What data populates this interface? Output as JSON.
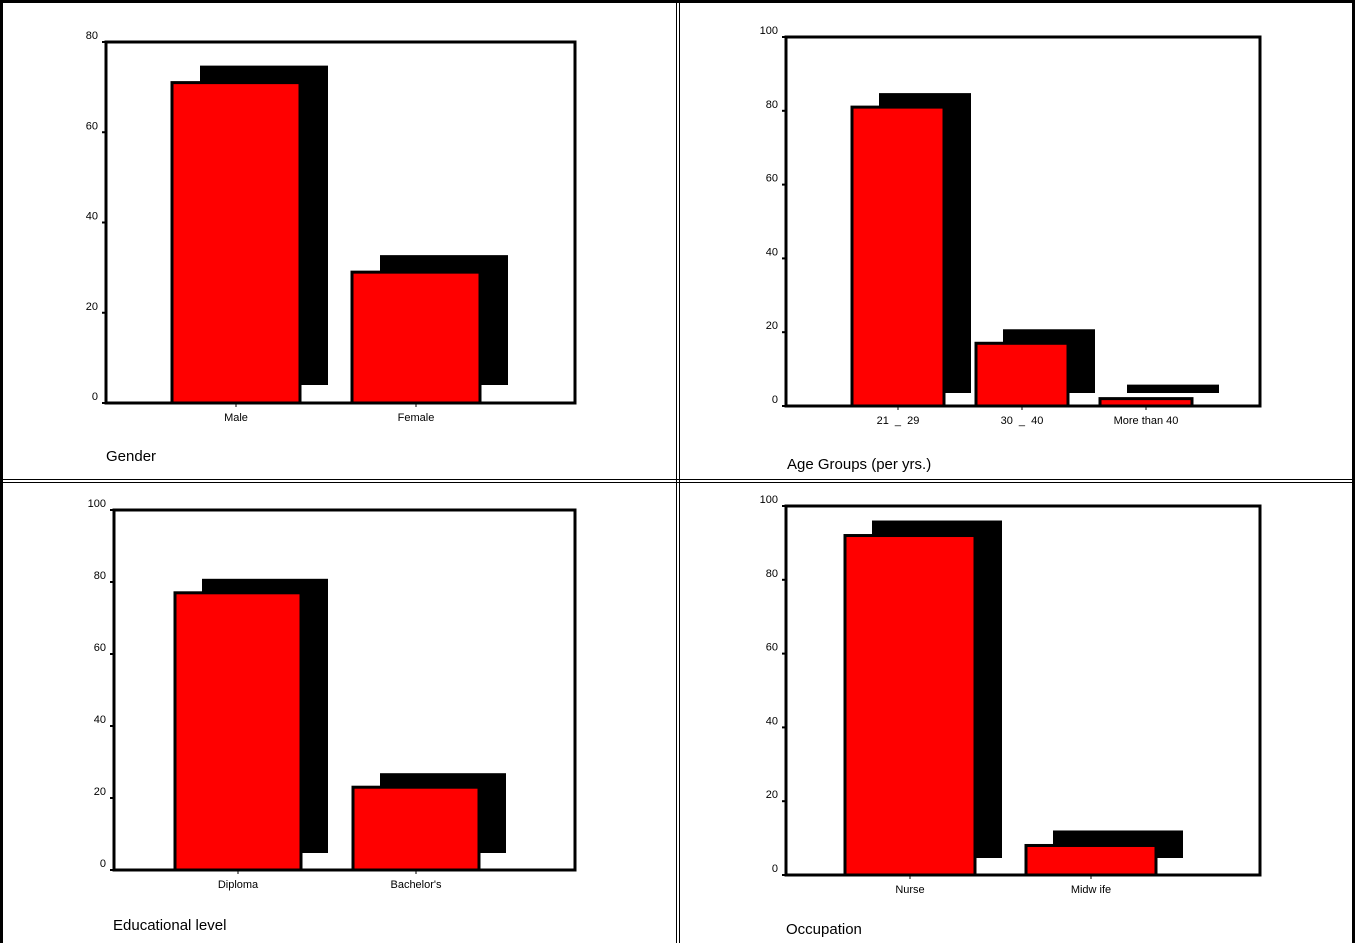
{
  "colors": {
    "bar": "#ff0000",
    "shadow": "#000000",
    "frame": "#000000",
    "background": "#ffffff"
  },
  "chart_data": [
    {
      "type": "bar",
      "title": "",
      "xlabel": "Gender",
      "ylabel": "",
      "categories": [
        "Male",
        "Female"
      ],
      "values": [
        71,
        29
      ],
      "ylim": [
        0,
        80
      ],
      "yticks": [
        0,
        20,
        40,
        60,
        80
      ],
      "grid": false,
      "legend": "none",
      "bar_style": "3d-shadow"
    },
    {
      "type": "bar",
      "title": "",
      "xlabel": "Age Groups (per yrs.)",
      "ylabel": "",
      "categories": [
        "21  _  29",
        "30  _  40",
        "More than 40"
      ],
      "values": [
        81,
        17,
        2
      ],
      "ylim": [
        0,
        100
      ],
      "yticks": [
        0,
        20,
        40,
        60,
        80,
        100
      ],
      "grid": false,
      "legend": "none",
      "bar_style": "3d-shadow"
    },
    {
      "type": "bar",
      "title": "",
      "xlabel": "Educational level",
      "ylabel": "",
      "categories": [
        "Diploma",
        "Bachelor's"
      ],
      "values": [
        77,
        23
      ],
      "ylim": [
        0,
        100
      ],
      "yticks": [
        0,
        20,
        40,
        60,
        80,
        100
      ],
      "grid": false,
      "legend": "none",
      "bar_style": "3d-shadow"
    },
    {
      "type": "bar",
      "title": "",
      "xlabel": "Occupation",
      "ylabel": "",
      "categories": [
        "Nurse",
        "Midw ife"
      ],
      "values": [
        92,
        8
      ],
      "ylim": [
        0,
        100
      ],
      "yticks": [
        0,
        20,
        40,
        60,
        80,
        100
      ],
      "grid": false,
      "legend": "none",
      "bar_style": "3d-shadow"
    }
  ]
}
